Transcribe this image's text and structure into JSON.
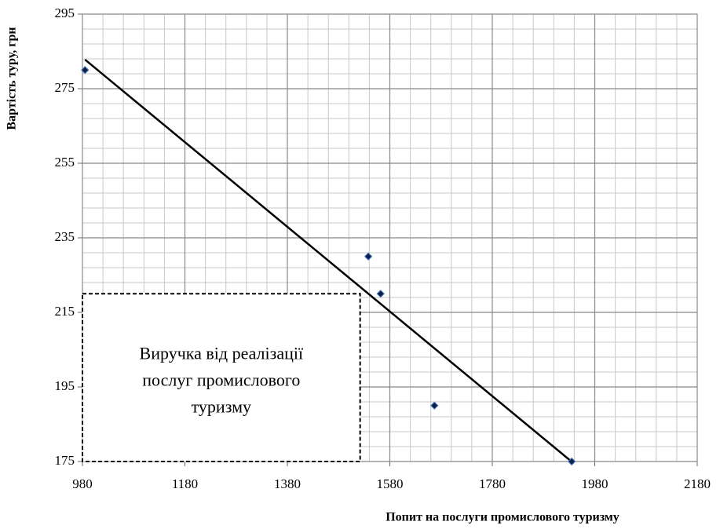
{
  "chart_data": {
    "type": "scatter",
    "x_label": "Попит на послуги промислового туризму",
    "y_label": "Вартість туру, грн",
    "x": [
      985,
      1538,
      1562,
      1667,
      1935
    ],
    "values": [
      280,
      230,
      220,
      190,
      175
    ],
    "color": "#0d1f4a",
    "trendline": {
      "x": [
        985,
        1938
      ],
      "values": [
        282.8,
        174.6
      ]
    },
    "xlim": [
      980,
      2180
    ],
    "xticks": [
      980,
      1180,
      1380,
      1580,
      1780,
      1980,
      2180
    ],
    "ylim": [
      175,
      295
    ],
    "yticks": [
      175,
      195,
      215,
      235,
      255,
      275,
      295
    ],
    "grid": true,
    "xminor": 40,
    "yminor": 4,
    "annotation": {
      "lines": [
        "Виручка від реалізації",
        "послуг промислового",
        "туризму"
      ],
      "xlim": [
        980,
        1522
      ],
      "ylim": [
        175,
        220
      ]
    }
  }
}
